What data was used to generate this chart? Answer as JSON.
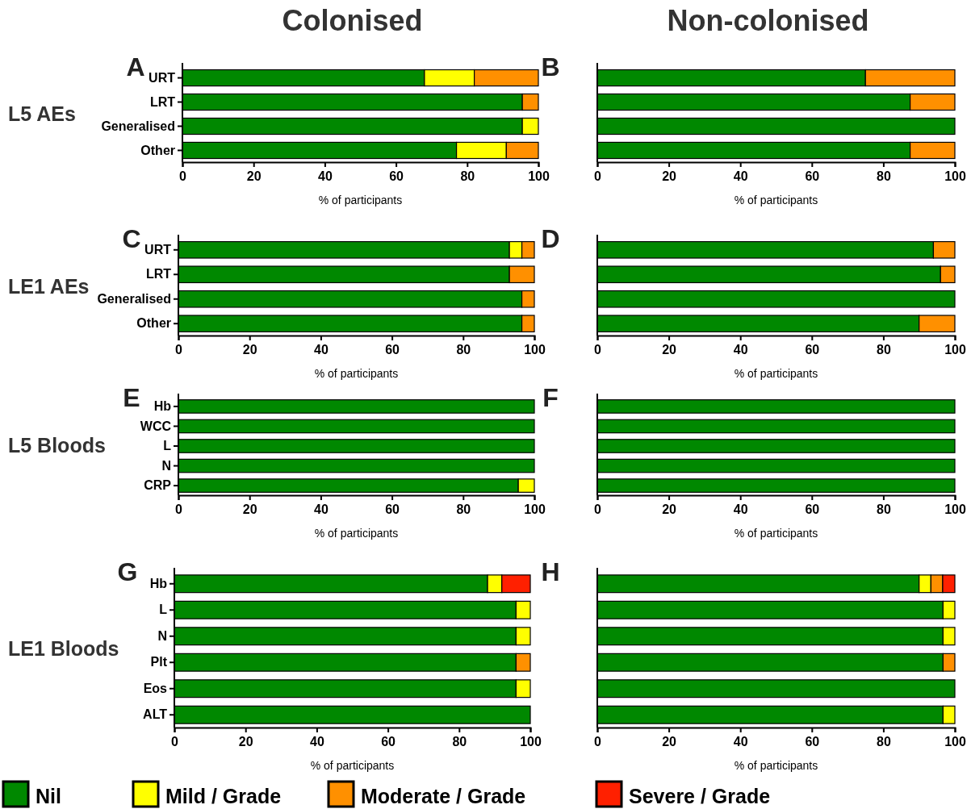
{
  "chart_data": [
    {
      "type": "bar",
      "orientation": "horizontal",
      "stacked": true,
      "title": "A",
      "subtitle": "Colonised",
      "ylabel": "L5 AEs",
      "xlabel": "% of participants",
      "categories": [
        "URT",
        "LRT",
        "Generalised",
        "Other"
      ],
      "xlim": [
        0,
        100
      ],
      "xticks": [
        0,
        20,
        40,
        60,
        80,
        100
      ],
      "series": [
        {
          "color": "#008800",
          "values": [
            68,
            95.5,
            95.5,
            77
          ]
        },
        {
          "color": "#ffff00",
          "values": [
            14,
            0,
            4.5,
            14
          ]
        },
        {
          "color": "#ff9000",
          "values": [
            18,
            4.5,
            0,
            9
          ]
        },
        {
          "color": "#ff2000",
          "values": [
            0,
            0,
            0,
            0
          ]
        }
      ]
    },
    {
      "type": "bar",
      "orientation": "horizontal",
      "stacked": true,
      "title": "B",
      "subtitle": "Non-colonised",
      "xlabel": "% of participants",
      "categories": [
        null,
        null,
        null,
        null
      ],
      "tick_labels": "x",
      "xlim": [
        0,
        100
      ],
      "xticks": [
        0,
        20,
        40,
        60,
        80,
        100
      ],
      "series": [
        {
          "color": "#008800",
          "values": [
            75,
            87.5,
            100,
            87.5
          ]
        },
        {
          "color": "#ffff00",
          "values": [
            0,
            0,
            0,
            0
          ]
        },
        {
          "color": "#ff9000",
          "values": [
            25,
            12.5,
            0,
            12.5
          ]
        },
        {
          "color": "#ff2000",
          "values": [
            0,
            0,
            0,
            0
          ]
        }
      ]
    },
    {
      "type": "bar",
      "orientation": "horizontal",
      "stacked": true,
      "title": "C",
      "ylabel": "LE1 AEs",
      "xlabel": "% of participants",
      "categories": [
        "URT",
        "LRT",
        "Generalised",
        "Other"
      ],
      "xlim": [
        0,
        100
      ],
      "xticks": [
        0,
        20,
        40,
        60,
        80,
        100
      ],
      "series": [
        {
          "color": "#008800",
          "values": [
            93,
            93,
            96.5,
            96.5
          ]
        },
        {
          "color": "#ffff00",
          "values": [
            3.5,
            0,
            0,
            0
          ]
        },
        {
          "color": "#ff9000",
          "values": [
            3.5,
            7,
            3.5,
            3.5
          ]
        },
        {
          "color": "#ff2000",
          "values": [
            0,
            0,
            0,
            0
          ]
        }
      ]
    },
    {
      "type": "bar",
      "orientation": "horizontal",
      "stacked": true,
      "title": "D",
      "xlabel": "% of participants",
      "categories": [
        null,
        null,
        null,
        null
      ],
      "tick_labels": "x",
      "xlim": [
        0,
        100
      ],
      "xticks": [
        0,
        20,
        40,
        60,
        80,
        100
      ],
      "series": [
        {
          "color": "#008800",
          "values": [
            94,
            96,
            100,
            90
          ]
        },
        {
          "color": "#ffff00",
          "values": [
            0,
            0,
            0,
            0
          ]
        },
        {
          "color": "#ff9000",
          "values": [
            6,
            4,
            0,
            10
          ]
        },
        {
          "color": "#ff2000",
          "values": [
            0,
            0,
            0,
            0
          ]
        }
      ]
    },
    {
      "type": "bar",
      "orientation": "horizontal",
      "stacked": true,
      "title": "E",
      "ylabel": "L5 Bloods",
      "xlabel": "% of participants",
      "categories": [
        "Hb",
        "WCC",
        "L",
        "N",
        "CRP"
      ],
      "xlim": [
        0,
        100
      ],
      "xticks": [
        0,
        20,
        40,
        60,
        80,
        100
      ],
      "series": [
        {
          "color": "#008800",
          "values": [
            100,
            100,
            100,
            100,
            95.5
          ]
        },
        {
          "color": "#ffff00",
          "values": [
            0,
            0,
            0,
            0,
            4.5
          ]
        },
        {
          "color": "#ff9000",
          "values": [
            0,
            0,
            0,
            0,
            0
          ]
        },
        {
          "color": "#ff2000",
          "values": [
            0,
            0,
            0,
            0,
            0
          ]
        }
      ]
    },
    {
      "type": "bar",
      "orientation": "horizontal",
      "stacked": true,
      "title": "F",
      "xlabel": "% of participants",
      "categories": [
        null,
        null,
        null,
        null,
        null
      ],
      "tick_labels": "x",
      "xlim": [
        0,
        100
      ],
      "xticks": [
        0,
        20,
        40,
        60,
        80,
        100
      ],
      "series": [
        {
          "color": "#008800",
          "values": [
            100,
            100,
            100,
            100,
            100
          ]
        },
        {
          "color": "#ffff00",
          "values": [
            0,
            0,
            0,
            0,
            0
          ]
        },
        {
          "color": "#ff9000",
          "values": [
            0,
            0,
            0,
            0,
            0
          ]
        },
        {
          "color": "#ff2000",
          "values": [
            0,
            0,
            0,
            0,
            0
          ]
        }
      ]
    },
    {
      "type": "bar",
      "orientation": "horizontal",
      "stacked": true,
      "title": "G",
      "ylabel": "LE1 Bloods",
      "xlabel": "% of participants",
      "categories": [
        "Hb",
        "L",
        "N",
        "Plt",
        "Eos",
        "ALT"
      ],
      "xlim": [
        0,
        100
      ],
      "xticks": [
        0,
        20,
        40,
        60,
        80,
        100
      ],
      "legend": "bottom",
      "series": [
        {
          "name": "Nil",
          "color": "#008800",
          "values": [
            88,
            96,
            96,
            96,
            96,
            100
          ]
        },
        {
          "name": "Mild / Grade",
          "color": "#ffff00",
          "values": [
            4,
            4,
            4,
            0,
            4,
            0
          ]
        },
        {
          "name": "Moderate / Grade",
          "color": "#ff9000",
          "values": [
            0,
            0,
            0,
            4,
            0,
            0
          ]
        },
        {
          "name": "Severe / Grade",
          "color": "#ff2000",
          "values": [
            8,
            0,
            0,
            0,
            0,
            0
          ]
        }
      ]
    },
    {
      "type": "bar",
      "orientation": "horizontal",
      "stacked": true,
      "title": "H",
      "xlabel": "% of participants",
      "categories": [
        null,
        null,
        null,
        null,
        null,
        null
      ],
      "tick_labels": "x",
      "xlim": [
        0,
        100
      ],
      "xticks": [
        0,
        20,
        40,
        60,
        80,
        100
      ],
      "series": [
        {
          "color": "#008800",
          "values": [
            90,
            96.7,
            96.7,
            96.7,
            100,
            96.7
          ]
        },
        {
          "color": "#ffff00",
          "values": [
            3.3,
            3.3,
            3.3,
            0,
            0,
            3.3
          ]
        },
        {
          "color": "#ff9000",
          "values": [
            3.3,
            0,
            0,
            3.3,
            0,
            0
          ]
        },
        {
          "color": "#ff2000",
          "values": [
            3.4,
            0,
            0,
            0,
            0,
            0
          ]
        }
      ]
    }
  ]
}
